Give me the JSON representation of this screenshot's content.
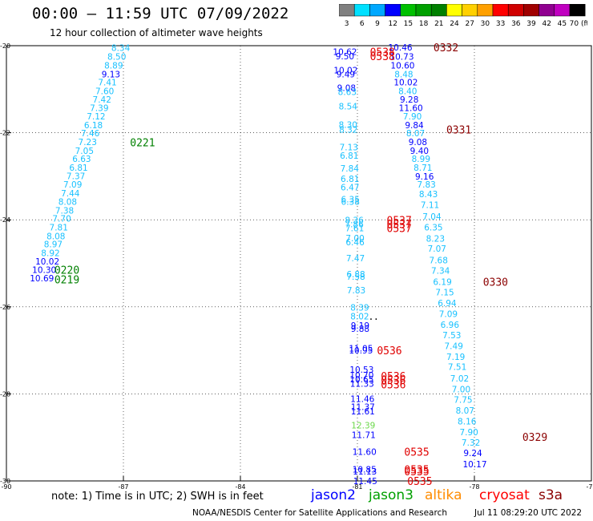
{
  "title": "00:00 — 11:59 UTC 07/09/2022",
  "subtitle": "12 hour collection of altimeter wave heights",
  "colors": {
    "level1": "#19c1ff",
    "level2": "#0000ff",
    "level3": "#6bd84a",
    "level4": "#000000",
    "dark_red": "#8b0000",
    "red": "#e00000",
    "green": "#008000"
  },
  "color_scale": {
    "labels": [
      "3",
      "6",
      "9",
      "12",
      "15",
      "18",
      "21",
      "24",
      "27",
      "30",
      "33",
      "36",
      "39",
      "42",
      "45",
      "70 (ft)"
    ],
    "colors": [
      "#808080",
      "#00e0ff",
      "#00a8ff",
      "#0000ff",
      "#00c000",
      "#00a000",
      "#008000",
      "#ffff00",
      "#ffd000",
      "#ffa000",
      "#ff0000",
      "#d00000",
      "#a00000",
      "#900090",
      "#c000c0",
      "#000000"
    ]
  },
  "chart_data": {
    "type": "scatter",
    "xlim": [
      -90,
      -75
    ],
    "ylim": [
      -30,
      -20
    ],
    "x_ticks": [
      "-90",
      "-87",
      "-84",
      "-81",
      "-78",
      "-75"
    ],
    "y_ticks": [
      "-20",
      "-22",
      "-24",
      "-26",
      "-28",
      "-30"
    ],
    "grid": true,
    "series": [
      {
        "points": [
          {
            "x": -87.07,
            "y": -20.05,
            "v": "8.34",
            "c": "level1"
          },
          {
            "x": -87.17,
            "y": -20.25,
            "v": "8.50",
            "c": "level1"
          },
          {
            "x": -87.25,
            "y": -20.45,
            "v": "8.89",
            "c": "level1"
          },
          {
            "x": -87.32,
            "y": -20.65,
            "v": "9.13",
            "c": "level2"
          },
          {
            "x": -87.41,
            "y": -20.84,
            "v": "7.41",
            "c": "level1"
          },
          {
            "x": -87.48,
            "y": -21.04,
            "v": "7.60",
            "c": "level1"
          },
          {
            "x": -87.55,
            "y": -21.23,
            "v": "7.42",
            "c": "level1"
          },
          {
            "x": -87.62,
            "y": -21.43,
            "v": "7.39",
            "c": "level1"
          },
          {
            "x": -87.7,
            "y": -21.62,
            "v": "7.12",
            "c": "level1"
          },
          {
            "x": -87.77,
            "y": -21.82,
            "v": "6.18",
            "c": "level1"
          },
          {
            "x": -87.85,
            "y": -22.01,
            "v": "7.46",
            "c": "level1"
          },
          {
            "x": -87.92,
            "y": -22.21,
            "v": "7.23",
            "c": "level1"
          },
          {
            "x": -88.0,
            "y": -22.41,
            "v": "7.05",
            "c": "level1"
          },
          {
            "x": -88.07,
            "y": -22.6,
            "v": "6.63",
            "c": "level1"
          },
          {
            "x": -88.15,
            "y": -22.8,
            "v": "6.81",
            "c": "level1"
          },
          {
            "x": -88.22,
            "y": -22.99,
            "v": "7.37",
            "c": "level1"
          },
          {
            "x": -88.3,
            "y": -23.19,
            "v": "7.09",
            "c": "level1"
          },
          {
            "x": -88.36,
            "y": -23.39,
            "v": "7.44",
            "c": "level1"
          },
          {
            "x": -88.43,
            "y": -23.58,
            "v": "8.08",
            "c": "level1"
          },
          {
            "x": -88.51,
            "y": -23.78,
            "v": "7.38",
            "c": "level1"
          },
          {
            "x": -88.58,
            "y": -23.97,
            "v": "7.70",
            "c": "level1"
          },
          {
            "x": -88.66,
            "y": -24.17,
            "v": "7.81",
            "c": "level1"
          },
          {
            "x": -88.73,
            "y": -24.37,
            "v": "8.08",
            "c": "level1"
          },
          {
            "x": -88.8,
            "y": -24.56,
            "v": "8.97",
            "c": "level1"
          },
          {
            "x": -88.87,
            "y": -24.76,
            "v": "8.92",
            "c": "level1"
          },
          {
            "x": -88.95,
            "y": -24.95,
            "v": "10.02",
            "c": "level2"
          },
          {
            "x": -89.03,
            "y": -25.15,
            "v": "10.30",
            "c": "level2"
          },
          {
            "x": -89.09,
            "y": -25.34,
            "v": "10.69",
            "c": "level2"
          },
          {
            "x": -81.32,
            "y": -20.14,
            "v": "10.62",
            "c": "level2"
          },
          {
            "x": -81.32,
            "y": -20.24,
            "v": "9.50",
            "c": "level2"
          },
          {
            "x": -81.3,
            "y": -20.56,
            "v": "10.02",
            "c": "level2"
          },
          {
            "x": -81.3,
            "y": -20.65,
            "v": "9.49",
            "c": "level2"
          },
          {
            "x": -81.28,
            "y": -20.97,
            "v": "9.08",
            "c": "level2"
          },
          {
            "x": -81.26,
            "y": -21.06,
            "v": "8.63",
            "c": "level1"
          },
          {
            "x": -81.24,
            "y": -21.39,
            "v": "8.54",
            "c": "level1"
          },
          {
            "x": -81.24,
            "y": -21.81,
            "v": "8.30",
            "c": "level1"
          },
          {
            "x": -81.23,
            "y": -21.92,
            "v": "8.32",
            "c": "level1"
          },
          {
            "x": -81.22,
            "y": -22.33,
            "v": "7.13",
            "c": "level1"
          },
          {
            "x": -81.21,
            "y": -22.52,
            "v": "6.81",
            "c": "level1"
          },
          {
            "x": -81.2,
            "y": -22.82,
            "v": "7.84",
            "c": "level1"
          },
          {
            "x": -81.19,
            "y": -23.06,
            "v": "6.81",
            "c": "level1"
          },
          {
            "x": -81.19,
            "y": -23.25,
            "v": "6.47",
            "c": "level1"
          },
          {
            "x": -81.18,
            "y": -23.53,
            "v": "6.35",
            "c": "level1"
          },
          {
            "x": -81.18,
            "y": -23.58,
            "v": "6.38",
            "c": "level1"
          },
          {
            "x": -81.08,
            "y": -24.01,
            "v": "8.36",
            "c": "level1"
          },
          {
            "x": -81.08,
            "y": -24.1,
            "v": "7.86",
            "c": "level1"
          },
          {
            "x": -81.07,
            "y": -24.19,
            "v": "7.61",
            "c": "level1"
          },
          {
            "x": -81.06,
            "y": -24.42,
            "v": "7.00",
            "c": "level1"
          },
          {
            "x": -81.06,
            "y": -24.51,
            "v": "6.46",
            "c": "level1"
          },
          {
            "x": -81.05,
            "y": -24.88,
            "v": "7.47",
            "c": "level1"
          },
          {
            "x": -81.04,
            "y": -25.25,
            "v": "6.88",
            "c": "level1"
          },
          {
            "x": -81.04,
            "y": -25.3,
            "v": "7.58",
            "c": "level1"
          },
          {
            "x": -81.03,
            "y": -25.62,
            "v": "7.83",
            "c": "level1"
          },
          {
            "x": -80.94,
            "y": -26.01,
            "v": "8.39",
            "c": "level1"
          },
          {
            "x": -80.94,
            "y": -26.22,
            "v": "8.02",
            "c": "level1"
          },
          {
            "x": -80.93,
            "y": -26.43,
            "v": "9.19",
            "c": "level2"
          },
          {
            "x": -80.93,
            "y": -26.5,
            "v": "9.88",
            "c": "level2"
          },
          {
            "x": -80.91,
            "y": -26.95,
            "v": "11.05",
            "c": "level2"
          },
          {
            "x": -80.91,
            "y": -27.0,
            "v": "10.95",
            "c": "level2"
          },
          {
            "x": -80.89,
            "y": -27.44,
            "v": "10.53",
            "c": "level2"
          },
          {
            "x": -80.89,
            "y": -27.57,
            "v": "10.70",
            "c": "level2"
          },
          {
            "x": -80.89,
            "y": -27.66,
            "v": "10.65",
            "c": "level2"
          },
          {
            "x": -80.88,
            "y": -27.76,
            "v": "11.33",
            "c": "level2"
          },
          {
            "x": -80.87,
            "y": -28.11,
            "v": "11.46",
            "c": "level2"
          },
          {
            "x": -80.86,
            "y": -28.3,
            "v": "11.37",
            "c": "level2"
          },
          {
            "x": -80.86,
            "y": -28.4,
            "v": "11.61",
            "c": "level2"
          },
          {
            "x": -80.85,
            "y": -28.72,
            "v": "12.39",
            "c": "level3"
          },
          {
            "x": -80.84,
            "y": -28.94,
            "v": "11.71",
            "c": "level2"
          },
          {
            "x": -80.82,
            "y": -29.33,
            "v": "11.60",
            "c": "level2"
          },
          {
            "x": -80.82,
            "y": -29.73,
            "v": "10.85",
            "c": "level2"
          },
          {
            "x": -80.81,
            "y": -29.78,
            "v": "11.13",
            "c": "level2"
          },
          {
            "x": -80.8,
            "y": -30.0,
            "v": "11.45",
            "c": "level2"
          },
          {
            "x": -79.9,
            "y": -20.04,
            "v": "10.46",
            "c": "level2"
          },
          {
            "x": -79.86,
            "y": -20.25,
            "v": "10.73",
            "c": "level2"
          },
          {
            "x": -79.84,
            "y": -20.45,
            "v": "10.60",
            "c": "level2"
          },
          {
            "x": -79.81,
            "y": -20.65,
            "v": "8.48",
            "c": "level1"
          },
          {
            "x": -79.76,
            "y": -20.84,
            "v": "10.02",
            "c": "level2"
          },
          {
            "x": -79.71,
            "y": -21.04,
            "v": "8.40",
            "c": "level1"
          },
          {
            "x": -79.67,
            "y": -21.23,
            "v": "9.28",
            "c": "level2"
          },
          {
            "x": -79.63,
            "y": -21.43,
            "v": "11.60",
            "c": "level2"
          },
          {
            "x": -79.59,
            "y": -21.62,
            "v": "7.90",
            "c": "level1"
          },
          {
            "x": -79.54,
            "y": -21.82,
            "v": "9.84",
            "c": "level2"
          },
          {
            "x": -79.51,
            "y": -22.01,
            "v": "8.07",
            "c": "level1"
          },
          {
            "x": -79.45,
            "y": -22.21,
            "v": "9.08",
            "c": "level2"
          },
          {
            "x": -79.41,
            "y": -22.41,
            "v": "9.40",
            "c": "level2"
          },
          {
            "x": -79.37,
            "y": -22.6,
            "v": "8.99",
            "c": "level1"
          },
          {
            "x": -79.32,
            "y": -22.8,
            "v": "8.71",
            "c": "level1"
          },
          {
            "x": -79.28,
            "y": -23.0,
            "v": "9.16",
            "c": "level2"
          },
          {
            "x": -79.23,
            "y": -23.19,
            "v": "7.83",
            "c": "level1"
          },
          {
            "x": -79.18,
            "y": -23.41,
            "v": "8.43",
            "c": "level1"
          },
          {
            "x": -79.14,
            "y": -23.66,
            "v": "7.11",
            "c": "level1"
          },
          {
            "x": -79.09,
            "y": -23.92,
            "v": "7.04",
            "c": "level1"
          },
          {
            "x": -79.05,
            "y": -24.17,
            "v": "6.35",
            "c": "level1"
          },
          {
            "x": -79.0,
            "y": -24.43,
            "v": "8.23",
            "c": "level1"
          },
          {
            "x": -78.96,
            "y": -24.66,
            "v": "7.07",
            "c": "level1"
          },
          {
            "x": -78.92,
            "y": -24.93,
            "v": "7.68",
            "c": "level1"
          },
          {
            "x": -78.87,
            "y": -25.17,
            "v": "7.34",
            "c": "level1"
          },
          {
            "x": -78.82,
            "y": -25.42,
            "v": "6.19",
            "c": "level1"
          },
          {
            "x": -78.76,
            "y": -25.66,
            "v": "7.15",
            "c": "level1"
          },
          {
            "x": -78.7,
            "y": -25.91,
            "v": "6.94",
            "c": "level1"
          },
          {
            "x": -78.67,
            "y": -26.16,
            "v": "7.09",
            "c": "level1"
          },
          {
            "x": -78.63,
            "y": -26.41,
            "v": "6.96",
            "c": "level1"
          },
          {
            "x": -78.58,
            "y": -26.65,
            "v": "7.53",
            "c": "level1"
          },
          {
            "x": -78.53,
            "y": -26.9,
            "v": "7.49",
            "c": "level1"
          },
          {
            "x": -78.48,
            "y": -27.15,
            "v": "7.19",
            "c": "level1"
          },
          {
            "x": -78.44,
            "y": -27.38,
            "v": "7.51",
            "c": "level1"
          },
          {
            "x": -78.38,
            "y": -27.64,
            "v": "7.02",
            "c": "level1"
          },
          {
            "x": -78.34,
            "y": -27.89,
            "v": "7.00",
            "c": "level1"
          },
          {
            "x": -78.29,
            "y": -28.13,
            "v": "7.75",
            "c": "level1"
          },
          {
            "x": -78.24,
            "y": -28.38,
            "v": "8.07",
            "c": "level1"
          },
          {
            "x": -78.19,
            "y": -28.63,
            "v": "8.16",
            "c": "level1"
          },
          {
            "x": -78.14,
            "y": -28.88,
            "v": "7.90",
            "c": "level1"
          },
          {
            "x": -78.09,
            "y": -29.12,
            "v": "7.32",
            "c": "level1"
          },
          {
            "x": -78.04,
            "y": -29.36,
            "v": "9.24",
            "c": "level2"
          },
          {
            "x": -77.99,
            "y": -29.61,
            "v": "10.17",
            "c": "level2"
          }
        ]
      }
    ],
    "annotations": [
      {
        "x": -86.83,
        "y": -22.22,
        "text": "0221",
        "c": "green"
      },
      {
        "x": -88.77,
        "y": -25.15,
        "text": "0220",
        "c": "green"
      },
      {
        "x": -88.77,
        "y": -25.37,
        "text": "0219",
        "c": "green"
      },
      {
        "x": -80.68,
        "y": -20.14,
        "text": "0538",
        "c": "red"
      },
      {
        "x": -80.68,
        "y": -20.24,
        "text": "0538",
        "c": "red"
      },
      {
        "x": -80.25,
        "y": -24.01,
        "text": "0537",
        "c": "red"
      },
      {
        "x": -80.25,
        "y": -24.1,
        "text": "0537",
        "c": "red"
      },
      {
        "x": -80.25,
        "y": -24.19,
        "text": "0537",
        "c": "red"
      },
      {
        "x": -80.5,
        "y": -27.0,
        "text": "0536",
        "c": "red"
      },
      {
        "x": -80.4,
        "y": -27.59,
        "text": "0536",
        "c": "red"
      },
      {
        "x": -80.4,
        "y": -27.68,
        "text": "0536",
        "c": "red"
      },
      {
        "x": -80.4,
        "y": -27.78,
        "text": "0536",
        "c": "red"
      },
      {
        "x": -79.8,
        "y": -29.33,
        "text": "0535",
        "c": "red"
      },
      {
        "x": -79.8,
        "y": -29.73,
        "text": "0535",
        "c": "red"
      },
      {
        "x": -79.8,
        "y": -29.78,
        "text": "0535",
        "c": "red"
      },
      {
        "x": -79.72,
        "y": -30.0,
        "text": "0535",
        "c": "red"
      },
      {
        "x": -79.05,
        "y": -20.04,
        "text": "0332",
        "c": "dark_red"
      },
      {
        "x": -78.72,
        "y": -21.92,
        "text": "0331",
        "c": "dark_red"
      },
      {
        "x": -77.78,
        "y": -25.42,
        "text": "0330",
        "c": "dark_red"
      },
      {
        "x": -76.77,
        "y": -28.99,
        "text": "0329",
        "c": "dark_red"
      }
    ],
    "stray_marks": [
      {
        "x": -80.65,
        "y": -26.37,
        "text": "·"
      },
      {
        "x": -80.52,
        "y": -26.37,
        "text": "·"
      }
    ]
  },
  "footer": {
    "note": "note: 1) Time is in UTC; 2) SWH is in feet",
    "satellites": [
      {
        "name": "jason2",
        "color": "#0000ff"
      },
      {
        "name": "jason3",
        "color": "#00a000"
      },
      {
        "name": "altika",
        "color": "#ff8c00"
      },
      {
        "name": "cryosat",
        "color": "#ff0000"
      },
      {
        "name": "s3a",
        "color": "#8b0000"
      }
    ],
    "credit": "NOAA/NESDIS Center for Satellite Applications and Research",
    "timestamp": "Jul 11 08:29:20 UTC 2022"
  }
}
